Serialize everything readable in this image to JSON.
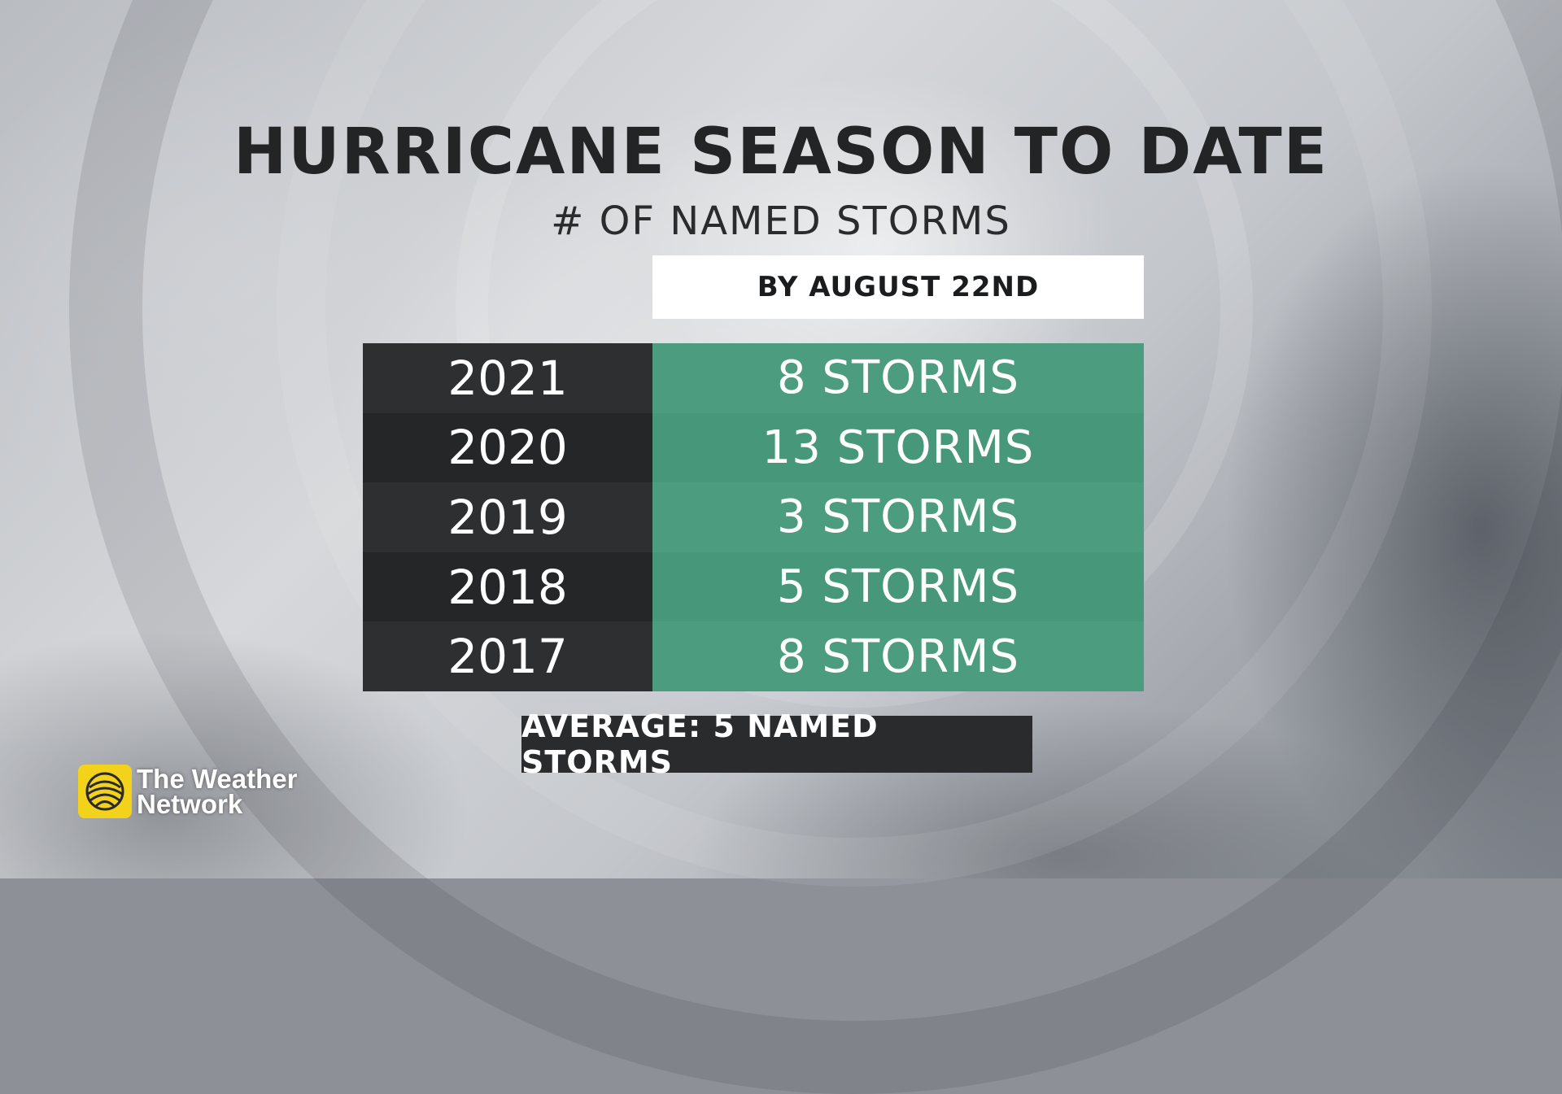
{
  "title": "HURRICANE SEASON TO DATE",
  "subtitle": "# OF NAMED STORMS",
  "column_header": "BY AUGUST 22ND",
  "rows": [
    {
      "year": "2021",
      "storms": "8 STORMS"
    },
    {
      "year": "2020",
      "storms": "13 STORMS"
    },
    {
      "year": "2019",
      "storms": "3 STORMS"
    },
    {
      "year": "2018",
      "storms": "5 STORMS"
    },
    {
      "year": "2017",
      "storms": "8 STORMS"
    }
  ],
  "average": "AVERAGE: 5 NAMED STORMS",
  "logo": {
    "line1": "The Weather",
    "line2": "Network",
    "icon": "weather-network-globe-icon"
  },
  "colors": {
    "storm_cell": "#4a9a7e",
    "year_cell": "#2c2d2e",
    "logo_yellow": "#f3d21c"
  }
}
